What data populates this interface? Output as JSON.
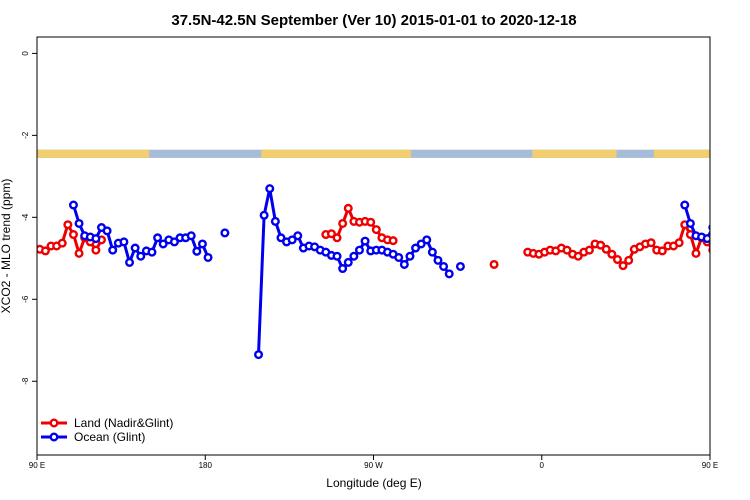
{
  "chart_data": {
    "type": "line",
    "title": "37.5N-42.5N September (Ver 10)   2015-01-01 to 2020-12-18",
    "xlabel": "Longitude (deg E)",
    "ylabel": "XCO2 - MLO trend (ppm)",
    "xlim": [
      90,
      450
    ],
    "ylim": [
      -9.8,
      0.4
    ],
    "x_ticks": [
      {
        "value": 90,
        "label": "90 E"
      },
      {
        "value": 180,
        "label": "180"
      },
      {
        "value": 270,
        "label": "90 W"
      },
      {
        "value": 360,
        "label": "0"
      },
      {
        "value": 450,
        "label": "90 E"
      },
      {
        "value": 540,
        "label": "180"
      }
    ],
    "y_ticks": [
      {
        "value": 0,
        "label": "0"
      },
      {
        "value": -2,
        "label": "-2"
      },
      {
        "value": -4,
        "label": "-4"
      },
      {
        "value": -6,
        "label": "-6"
      },
      {
        "value": -8,
        "label": "-8"
      }
    ],
    "grid": false,
    "legend_position": "bottom-left",
    "land_strip": {
      "y_range": [
        -2.55,
        -2.35
      ],
      "ocean_color": "#a6bcd9",
      "land_color": "#f2cf6e",
      "land_segments": [
        [
          90,
          150
        ],
        [
          210,
          290
        ],
        [
          355,
          400
        ],
        [
          420,
          500
        ],
        [
          570,
          650
        ],
        [
          700,
          772
        ]
      ]
    },
    "series": [
      {
        "name": "Land (Nadir&Glint)",
        "color": "#ee0000",
        "points": [
          [
            88.5,
            -4.78
          ],
          [
            91.5,
            -4.78
          ],
          [
            94.5,
            -4.82
          ],
          [
            97.5,
            -4.7
          ],
          [
            100.5,
            -4.7
          ],
          [
            103.5,
            -4.63
          ],
          [
            106.5,
            -4.18
          ],
          [
            109.5,
            -4.42
          ],
          [
            112.5,
            -4.88
          ],
          [
            115.5,
            -4.5
          ],
          [
            118.5,
            -4.6
          ],
          [
            121.5,
            -4.8
          ],
          [
            124.5,
            -4.55
          ],
          null,
          [
            244.5,
            -4.42
          ],
          [
            247.5,
            -4.4
          ],
          [
            250.5,
            -4.5
          ],
          [
            253.5,
            -4.15
          ],
          [
            256.5,
            -3.78
          ],
          [
            259.5,
            -4.1
          ],
          [
            262.5,
            -4.12
          ],
          [
            265.5,
            -4.1
          ],
          [
            268.5,
            -4.12
          ],
          [
            271.5,
            -4.3
          ],
          [
            274.5,
            -4.5
          ],
          [
            277.5,
            -4.55
          ],
          [
            280.5,
            -4.57
          ],
          null,
          [
            334.5,
            -5.15
          ],
          null,
          [
            352.5,
            -4.85
          ],
          [
            355.5,
            -4.88
          ],
          [
            358.5,
            -4.9
          ],
          [
            361.5,
            -4.85
          ],
          [
            364.5,
            -4.8
          ],
          [
            367.5,
            -4.82
          ],
          [
            370.5,
            -4.75
          ],
          [
            373.5,
            -4.8
          ],
          [
            376.5,
            -4.9
          ],
          [
            379.5,
            -4.95
          ],
          [
            382.5,
            -4.85
          ],
          [
            385.5,
            -4.8
          ],
          [
            388.5,
            -4.65
          ],
          [
            391.5,
            -4.68
          ],
          [
            394.5,
            -4.78
          ],
          [
            397.5,
            -4.9
          ],
          [
            400.5,
            -5.03
          ],
          [
            403.5,
            -5.18
          ],
          [
            406.5,
            -5.05
          ],
          [
            409.5,
            -4.78
          ],
          [
            412.5,
            -4.72
          ],
          [
            415.5,
            -4.65
          ],
          [
            418.5,
            -4.62
          ],
          [
            421.5,
            -4.8
          ],
          [
            424.5,
            -4.82
          ],
          [
            427.5,
            -4.7
          ],
          [
            430.5,
            -4.7
          ],
          [
            433.5,
            -4.62
          ],
          [
            436.5,
            -4.18
          ],
          [
            439.5,
            -4.42
          ],
          [
            442.5,
            -4.88
          ],
          [
            445.5,
            -4.5
          ],
          [
            448.5,
            -4.6
          ],
          [
            451.5,
            -4.8
          ]
        ]
      },
      {
        "name": "Ocean (Glint)",
        "color": "#0000ee",
        "points": [
          [
            109.5,
            -3.7
          ],
          [
            112.5,
            -4.15
          ],
          [
            115.5,
            -4.45
          ],
          [
            118.5,
            -4.48
          ],
          [
            121.5,
            -4.52
          ],
          [
            124.5,
            -4.25
          ],
          [
            127.5,
            -4.33
          ],
          [
            130.5,
            -4.8
          ],
          [
            133.5,
            -4.63
          ],
          [
            136.5,
            -4.6
          ],
          [
            139.5,
            -5.1
          ],
          [
            142.5,
            -4.75
          ],
          [
            145.5,
            -4.95
          ],
          [
            148.5,
            -4.82
          ],
          [
            151.5,
            -4.85
          ],
          [
            154.5,
            -4.5
          ],
          [
            157.5,
            -4.65
          ],
          [
            160.5,
            -4.55
          ],
          [
            163.5,
            -4.6
          ],
          [
            166.5,
            -4.5
          ],
          [
            169.5,
            -4.5
          ],
          [
            172.5,
            -4.45
          ],
          [
            175.5,
            -4.83
          ],
          [
            178.5,
            -4.65
          ],
          [
            181.5,
            -4.98
          ],
          null,
          [
            190.5,
            -4.38
          ],
          null,
          [
            208.5,
            -7.35
          ],
          [
            211.5,
            -3.95
          ],
          [
            214.5,
            -3.3
          ],
          [
            217.5,
            -4.1
          ],
          [
            220.5,
            -4.5
          ],
          [
            223.5,
            -4.6
          ],
          [
            226.5,
            -4.55
          ],
          [
            229.5,
            -4.45
          ],
          [
            232.5,
            -4.75
          ],
          [
            235.5,
            -4.7
          ],
          [
            238.5,
            -4.72
          ],
          [
            241.5,
            -4.8
          ],
          [
            244.5,
            -4.85
          ],
          [
            247.5,
            -4.93
          ],
          [
            250.5,
            -4.95
          ],
          [
            253.5,
            -5.25
          ],
          [
            256.5,
            -5.1
          ],
          [
            259.5,
            -4.95
          ],
          [
            262.5,
            -4.8
          ],
          [
            265.5,
            -4.58
          ],
          [
            268.5,
            -4.82
          ],
          [
            271.5,
            -4.8
          ],
          [
            274.5,
            -4.8
          ],
          [
            277.5,
            -4.85
          ],
          [
            280.5,
            -4.9
          ],
          [
            283.5,
            -4.98
          ],
          [
            286.5,
            -5.15
          ],
          [
            289.5,
            -4.95
          ],
          [
            292.5,
            -4.75
          ],
          [
            295.5,
            -4.65
          ],
          [
            298.5,
            -4.55
          ],
          [
            301.5,
            -4.85
          ],
          [
            304.5,
            -5.05
          ],
          [
            307.5,
            -5.2
          ],
          [
            310.5,
            -5.38
          ],
          null,
          [
            316.5,
            -5.2
          ],
          null,
          [
            436.5,
            -3.7
          ],
          [
            439.5,
            -4.15
          ],
          [
            442.5,
            -4.45
          ],
          [
            445.5,
            -4.48
          ],
          [
            448.5,
            -4.52
          ],
          [
            451.5,
            -4.25
          ]
        ]
      }
    ]
  }
}
